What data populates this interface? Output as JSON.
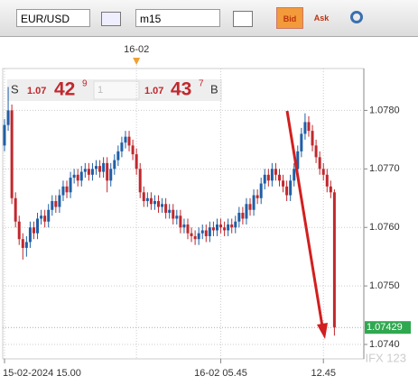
{
  "toolbar": {
    "symbol": "EUR/USD",
    "timeframe": "m15",
    "bid_button": "Bid",
    "ask_button": "Ask"
  },
  "quote": {
    "sell_label": "S",
    "sell_big_figure": "1.07",
    "sell_pips": "42",
    "sell_fraction": "9",
    "lot": "1",
    "buy_big_figure": "1.07",
    "buy_pips": "43",
    "buy_fraction": "7",
    "buy_label": "B"
  },
  "watermark": "IFX 123",
  "chart_data": {
    "type": "candlestick",
    "categories": [
      "15-02-2024 15.00",
      null,
      null,
      null,
      null,
      null,
      null,
      null,
      null,
      null,
      null,
      null,
      null,
      null,
      null,
      null,
      null,
      null,
      null,
      null,
      null,
      null,
      null,
      null,
      null,
      null,
      null,
      null,
      null,
      null,
      null,
      null,
      null,
      null,
      null,
      null,
      null,
      null,
      null,
      null,
      null,
      null,
      null,
      null,
      null,
      null,
      null,
      null,
      null,
      null,
      null,
      null,
      null,
      null,
      null,
      null,
      null,
      null,
      null,
      "16-02 05.45",
      null,
      null,
      null,
      null,
      null,
      null,
      null,
      null,
      null,
      null,
      null,
      null,
      null,
      null,
      null,
      null,
      null,
      null,
      null,
      null,
      null,
      null,
      null,
      null,
      null,
      null,
      null,
      "12.45",
      null,
      null,
      null
    ],
    "day_marker": {
      "label": "16-02",
      "at": 36
    },
    "open": [
      1.0774,
      1.07775,
      1.078,
      1.0765,
      1.0761,
      1.0758,
      1.07565,
      1.07575,
      1.076,
      1.0759,
      1.07615,
      1.0762,
      1.0761,
      1.0763,
      1.07645,
      1.07635,
      1.07655,
      1.0767,
      1.0766,
      1.07685,
      1.0769,
      1.0768,
      1.07695,
      1.077,
      1.0769,
      1.077,
      1.07705,
      1.07695,
      1.0771,
      1.0768,
      1.077,
      1.07715,
      1.0773,
      1.07745,
      1.07755,
      1.0774,
      1.07725,
      1.077,
      1.0766,
      1.07645,
      1.0765,
      1.0764,
      1.07645,
      1.07635,
      1.0764,
      1.07625,
      1.0763,
      1.07615,
      1.0762,
      1.076,
      1.07605,
      1.0759,
      1.07585,
      1.0758,
      1.0759,
      1.07595,
      1.07585,
      1.076,
      1.07595,
      1.07605,
      1.076,
      1.07595,
      1.07605,
      1.076,
      1.0761,
      1.07625,
      1.07615,
      1.0764,
      1.0763,
      1.07655,
      1.0765,
      1.07675,
      1.0769,
      1.0768,
      1.077,
      1.0769,
      1.0768,
      1.0767,
      1.07655,
      1.0768,
      1.077,
      1.0773,
      1.0776,
      1.0778,
      1.07765,
      1.0774,
      1.0772,
      1.077,
      1.0769,
      1.0767,
      1.0766
    ],
    "high": [
      1.07785,
      1.0784,
      1.0781,
      1.0766,
      1.0762,
      1.0759,
      1.07585,
      1.0761,
      1.0761,
      1.07625,
      1.0763,
      1.0763,
      1.0764,
      1.07655,
      1.07655,
      1.07665,
      1.0768,
      1.0768,
      1.07695,
      1.077,
      1.077,
      1.07705,
      1.0771,
      1.0771,
      1.0771,
      1.07715,
      1.07715,
      1.0772,
      1.0772,
      1.0771,
      1.07725,
      1.0774,
      1.07755,
      1.07765,
      1.07765,
      1.0775,
      1.07735,
      1.0771,
      1.0767,
      1.0766,
      1.0766,
      1.07655,
      1.07655,
      1.0765,
      1.0765,
      1.0764,
      1.0764,
      1.0763,
      1.0763,
      1.07615,
      1.07615,
      1.076,
      1.07595,
      1.076,
      1.07605,
      1.07605,
      1.0761,
      1.0761,
      1.07615,
      1.07615,
      1.0761,
      1.07615,
      1.07615,
      1.0762,
      1.07635,
      1.07635,
      1.0765,
      1.0765,
      1.07665,
      1.07665,
      1.07685,
      1.077,
      1.077,
      1.0771,
      1.0771,
      1.077,
      1.0769,
      1.0768,
      1.0769,
      1.0771,
      1.0774,
      1.0777,
      1.07795,
      1.0779,
      1.07775,
      1.0775,
      1.0773,
      1.0771,
      1.077,
      1.0768,
      1.07665
    ],
    "low": [
      1.0773,
      1.07765,
      1.0764,
      1.076,
      1.0757,
      1.07545,
      1.0755,
      1.07565,
      1.0758,
      1.0758,
      1.07605,
      1.076,
      1.076,
      1.0762,
      1.07625,
      1.07625,
      1.07645,
      1.0765,
      1.0765,
      1.07675,
      1.0767,
      1.0767,
      1.07685,
      1.0768,
      1.0768,
      1.0769,
      1.07685,
      1.07685,
      1.0766,
      1.0767,
      1.0769,
      1.07705,
      1.0772,
      1.07735,
      1.0773,
      1.07715,
      1.0769,
      1.0765,
      1.07635,
      1.07635,
      1.0763,
      1.0763,
      1.07625,
      1.07625,
      1.07615,
      1.07615,
      1.07605,
      1.07605,
      1.0759,
      1.0759,
      1.0758,
      1.07575,
      1.0757,
      1.0757,
      1.0758,
      1.07575,
      1.07575,
      1.07585,
      1.07585,
      1.0759,
      1.07585,
      1.07585,
      1.0759,
      1.0759,
      1.076,
      1.07605,
      1.07605,
      1.0762,
      1.0762,
      1.0764,
      1.0764,
      1.07665,
      1.0767,
      1.0767,
      1.0768,
      1.0767,
      1.0766,
      1.07645,
      1.07645,
      1.0767,
      1.0769,
      1.0772,
      1.0775,
      1.07755,
      1.0773,
      1.0771,
      1.0769,
      1.0768,
      1.0766,
      1.0765,
      1.07415
    ],
    "close": [
      1.07775,
      1.078,
      1.0765,
      1.0761,
      1.0758,
      1.07565,
      1.07575,
      1.076,
      1.0759,
      1.07615,
      1.0762,
      1.0761,
      1.0763,
      1.07645,
      1.07635,
      1.07655,
      1.0767,
      1.0766,
      1.07685,
      1.0769,
      1.0768,
      1.07695,
      1.077,
      1.0769,
      1.077,
      1.07705,
      1.07695,
      1.0771,
      1.0768,
      1.077,
      1.07715,
      1.0773,
      1.07745,
      1.07755,
      1.0774,
      1.07725,
      1.077,
      1.0766,
      1.07645,
      1.0765,
      1.0764,
      1.07645,
      1.07635,
      1.0764,
      1.07625,
      1.0763,
      1.07615,
      1.0762,
      1.076,
      1.07605,
      1.0759,
      1.07585,
      1.0758,
      1.0759,
      1.07595,
      1.07585,
      1.076,
      1.07595,
      1.07605,
      1.076,
      1.07595,
      1.07605,
      1.076,
      1.0761,
      1.07625,
      1.07615,
      1.0764,
      1.0763,
      1.07655,
      1.0765,
      1.07675,
      1.0769,
      1.0768,
      1.077,
      1.0769,
      1.0768,
      1.0767,
      1.07655,
      1.0768,
      1.077,
      1.0773,
      1.0776,
      1.0778,
      1.07765,
      1.0774,
      1.0772,
      1.077,
      1.0769,
      1.0767,
      1.0766,
      1.07429
    ],
    "up_color": "#1f5fa6",
    "down_color": "#c0282d",
    "last_price": 1.07429,
    "last_price_color": "#2fa84f",
    "ylim": [
      1.0738,
      1.0787
    ],
    "yticks": [
      {
        "value": 1.074,
        "label": "1.0740"
      },
      {
        "value": 1.075,
        "label": "1.0750"
      },
      {
        "value": 1.076,
        "label": "1.0760"
      },
      {
        "value": 1.077,
        "label": "1.0770"
      },
      {
        "value": 1.078,
        "label": "1.0780"
      }
    ],
    "grid": true
  }
}
